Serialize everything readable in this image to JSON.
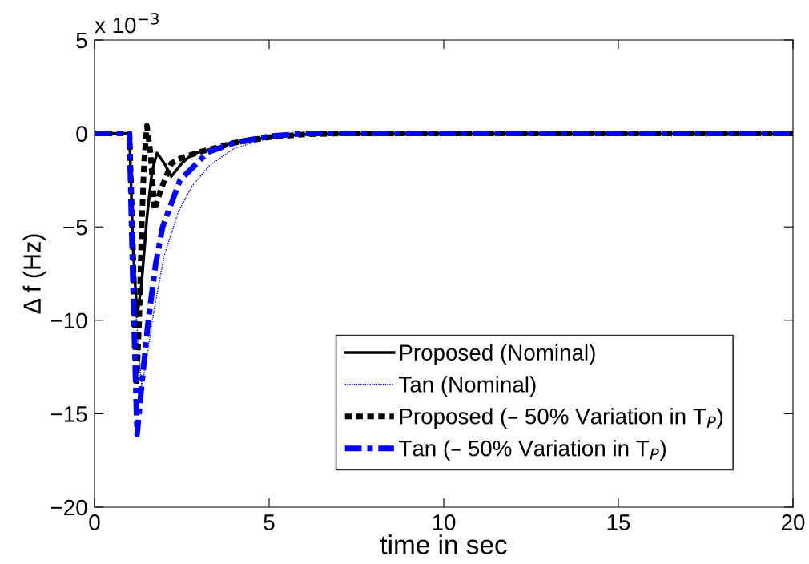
{
  "chart_data": {
    "type": "line",
    "xlabel": "time in sec",
    "ylabel": "Δ f (Hz)",
    "annotations": [
      "x 10$^{−3}$"
    ],
    "xlim": [
      0,
      20
    ],
    "xticks": [
      0,
      5,
      10,
      15,
      20
    ],
    "ylim": [
      -20,
      5
    ],
    "yticks": [
      -20,
      -15,
      -10,
      -5,
      0,
      5
    ],
    "grid": false,
    "legend": "bottom",
    "series": [
      {
        "name": "Proposed (Nominal)",
        "color": "#000000",
        "line_style": "solid",
        "x": [
          0,
          1.0,
          1.05,
          1.1,
          1.22,
          1.35,
          1.5,
          1.65,
          1.79,
          2.0,
          2.2,
          2.5,
          2.8,
          3.3,
          4,
          5,
          6,
          7,
          20
        ],
        "values": [
          0,
          0,
          -3,
          -6,
          -9.8,
          -8,
          -4.5,
          -2,
          -1.05,
          -1.6,
          -2.3,
          -1.6,
          -1.1,
          -0.85,
          -0.5,
          -0.2,
          -0.05,
          0,
          0
        ]
      },
      {
        "name": "Tan (Nominal)",
        "color": "#0000ff",
        "line_style": "dotted",
        "x": [
          0,
          1.0,
          1.1,
          1.2,
          1.35,
          1.5,
          1.7,
          2.0,
          2.4,
          2.8,
          3.3,
          4,
          5,
          6,
          7,
          20
        ],
        "values": [
          0,
          0,
          -5,
          -10,
          -13.5,
          -12,
          -9.5,
          -6.5,
          -4.2,
          -2.8,
          -1.7,
          -0.8,
          -0.25,
          -0.05,
          0,
          0
        ]
      },
      {
        "name": "Proposed (– 50% Variation in T$_{P}$)",
        "color": "#000000",
        "line_style": "dashed",
        "x": [
          0,
          1.0,
          1.1,
          1.2,
          1.28,
          1.35,
          1.42,
          1.5,
          1.6,
          1.72,
          1.9,
          2.2,
          2.5,
          3,
          4,
          5,
          6,
          7,
          20
        ],
        "values": [
          0,
          0,
          -6,
          -13.5,
          -10,
          -5,
          -1.5,
          0.4,
          -1,
          -4.1,
          -3,
          -1.6,
          -1.3,
          -1,
          -0.5,
          -0.2,
          -0.05,
          0,
          0
        ]
      },
      {
        "name": "Tan (– 50% Variation in T$_{P}$)",
        "color": "#0000ff",
        "line_style": "dashdot",
        "x": [
          0,
          1.0,
          1.1,
          1.22,
          1.35,
          1.54,
          1.75,
          1.95,
          2.45,
          3.25,
          4,
          5,
          6,
          20
        ],
        "values": [
          0,
          0,
          -8,
          -16.1,
          -13.5,
          -10,
          -7,
          -5,
          -2.5,
          -1,
          -0.5,
          -0.15,
          0,
          0
        ]
      }
    ]
  }
}
